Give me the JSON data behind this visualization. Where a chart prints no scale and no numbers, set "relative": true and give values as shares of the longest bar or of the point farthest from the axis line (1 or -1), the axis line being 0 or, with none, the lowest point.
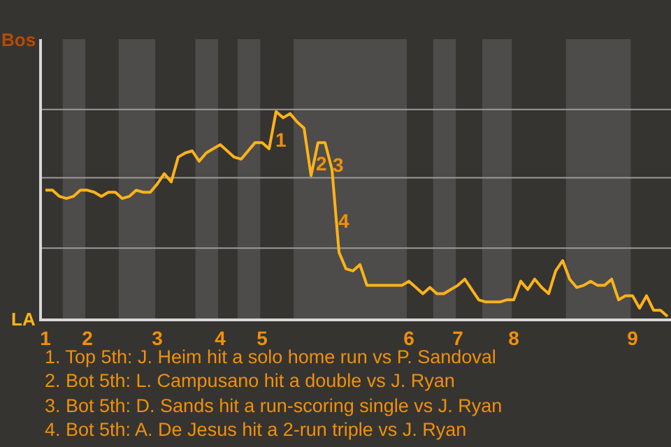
{
  "chart_data": {
    "type": "line",
    "relative": true,
    "categories": [
      "1",
      null,
      null,
      null,
      null,
      null,
      "2",
      null,
      null,
      null,
      null,
      null,
      null,
      null,
      null,
      null,
      "3",
      null,
      null,
      null,
      null,
      null,
      null,
      null,
      null,
      "4",
      null,
      null,
      null,
      null,
      null,
      "5",
      null,
      null,
      null,
      null,
      null,
      null,
      null,
      null,
      null,
      null,
      null,
      null,
      null,
      null,
      null,
      null,
      null,
      null,
      null,
      null,
      "6",
      null,
      null,
      null,
      null,
      null,
      null,
      "7",
      null,
      null,
      null,
      null,
      null,
      null,
      null,
      "8",
      null,
      null,
      null,
      null,
      null,
      null,
      null,
      null,
      null,
      null,
      null,
      null,
      null,
      null,
      null,
      null,
      "9",
      null,
      null,
      null,
      null,
      null
    ],
    "series": [
      {
        "color": "#ffb319",
        "values": [
          0.62,
          0.62,
          0.59,
          0.58,
          0.59,
          0.62,
          0.62,
          0.61,
          0.59,
          0.61,
          0.61,
          0.58,
          0.59,
          0.62,
          0.61,
          0.61,
          0.65,
          0.7,
          0.66,
          0.78,
          0.8,
          0.81,
          0.76,
          0.8,
          0.82,
          0.84,
          0.81,
          0.78,
          0.77,
          0.81,
          0.85,
          0.85,
          0.82,
          1,
          0.97,
          0.99,
          0.95,
          0.92,
          0.69,
          0.85,
          0.85,
          0.72,
          0.32,
          0.24,
          0.23,
          0.26,
          0.16,
          0.16,
          0.16,
          0.16,
          0.16,
          0.16,
          0.18,
          0.15,
          0.12,
          0.15,
          0.12,
          0.12,
          0.14,
          0.16,
          0.19,
          0.14,
          0.09,
          0.08,
          0.08,
          0.08,
          0.09,
          0.09,
          0.18,
          0.14,
          0.19,
          0.15,
          0.12,
          0.23,
          0.28,
          0.19,
          0.15,
          0.16,
          0.18,
          0.16,
          0.16,
          0.19,
          0.09,
          0.11,
          0.11,
          0.05,
          0.11,
          0.04,
          0.04,
          0.01
        ]
      }
    ],
    "ref_lines": [
      {
        "axis": "y",
        "value": 0.34,
        "color": "#9a9a9a"
      },
      {
        "axis": "y",
        "value": 0.68,
        "color": "#9a9a9a"
      },
      {
        "axis": "y",
        "value": 1.01,
        "color": "#9a9a9a"
      }
    ],
    "annotations": [
      "Bos",
      "LA",
      "1",
      "2",
      "3",
      "4",
      "1. Top 5th: J. Heim hit a solo home run vs P. Sandoval",
      "2. Bot 5th: L. Campusano hit a double vs J. Ryan",
      "3. Bot 5th: D. Sands hit a run-scoring single vs J. Ryan",
      "4. Bot 5th: A. De Jesus hit a 2-run triple vs J. Ryan"
    ]
  }
}
